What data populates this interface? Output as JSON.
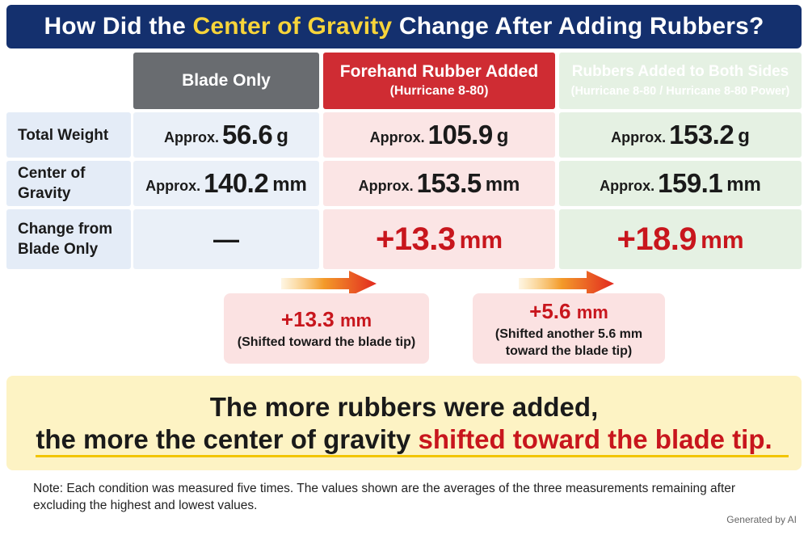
{
  "title": {
    "before": "How Did the ",
    "highlight": "Center of Gravity",
    "after": " Change After Adding Rubbers?"
  },
  "columns": [
    {
      "label": "Blade Only",
      "sublabel": ""
    },
    {
      "label": "Forehand Rubber Added",
      "sublabel": "(Hurricane 8-80)"
    },
    {
      "label": "Rubbers Added to Both Sides",
      "sublabel": "(Hurricane 8-80 / Hurricane 8-80 Power)"
    }
  ],
  "rows": {
    "total_weight": {
      "label": "Total Weight",
      "prefix": "Approx.",
      "unit": "g",
      "values": [
        "56.6",
        "105.9",
        "153.2"
      ]
    },
    "center_of_gravity": {
      "label": "Center of Gravity",
      "prefix": "Approx.",
      "unit": "mm",
      "values": [
        "140.2",
        "153.5",
        "159.1"
      ]
    },
    "change": {
      "label": "Change from Blade Only",
      "empty_marker": "—",
      "unit": "mm",
      "values": [
        "+13.3",
        "+18.9"
      ]
    }
  },
  "deltas": [
    {
      "value": "+13.3",
      "unit": "mm",
      "note": "(Shifted toward the blade tip)"
    },
    {
      "value": "+5.6",
      "unit": "mm",
      "note": "(Shifted another 5.6 mm toward the blade tip)"
    }
  ],
  "conclusion": {
    "line1": "The more rubbers were added,",
    "line2_before": "the more the center of gravity ",
    "line2_highlight": "shifted toward the blade tip."
  },
  "note": "Note: Each condition was measured five times. The values shown are the averages of the three measurements remaining after excluding the highest and lowest values.",
  "footer": "Generated by AI",
  "colors": {
    "title_bg": "#14306e",
    "title_highlight": "#f7d43a",
    "blade_only": "#696c70",
    "forehand": "#cf2c33",
    "both_sides": "#2b8a3e",
    "emphasis_red": "#c8161d",
    "conclusion_bg": "#fdf3c4"
  }
}
